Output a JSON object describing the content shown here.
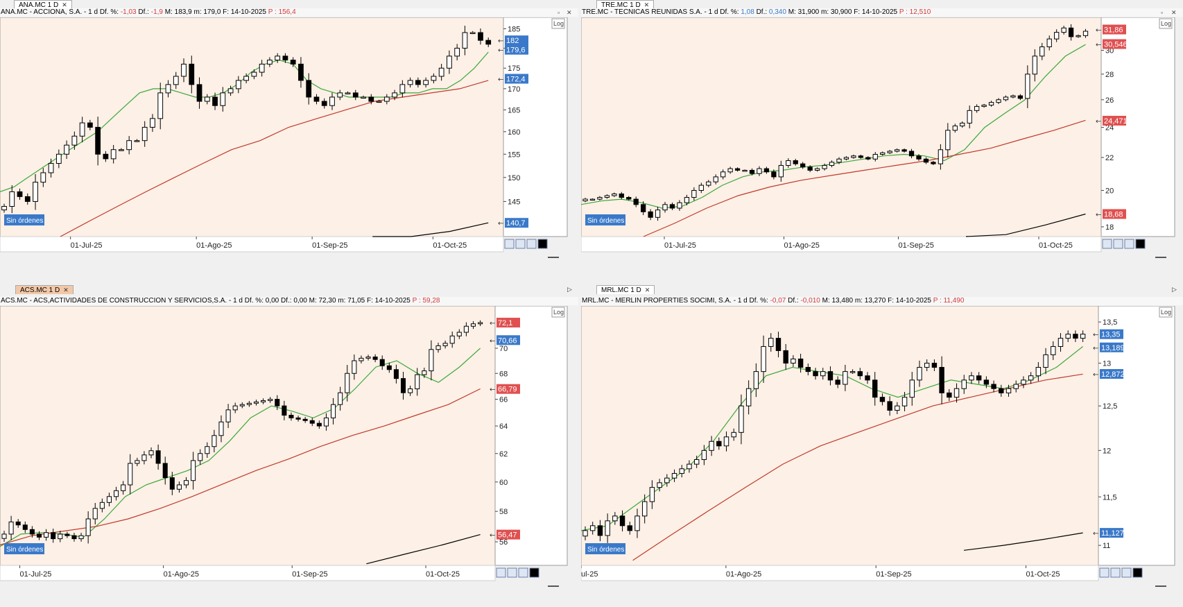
{
  "panels": [
    {
      "id": "ana",
      "tab": "ANA.MC 1 D",
      "header": {
        "name": "ANA.MC - ACCIONA, S.A. - 1 d",
        "dfp_label": "Df. %:",
        "dfp": "-1,03",
        "df_label": "Df.:",
        "df": "-1,9",
        "max": "M: 183,9",
        "min": "m: 179,0",
        "fecha": "F: 14-10-2025",
        "p": "P : 156,4"
      },
      "log_label": "Log",
      "orders_label": "Sin órdenes",
      "price_labels": [
        "182",
        "179,6",
        "172,4",
        "140,7"
      ],
      "chart_data": {
        "type": "candlestick",
        "x_labels": [
          "01-Jul-25",
          "01-Ago-25",
          "01-Sep-25",
          "01-Oct-25"
        ],
        "y_ticks": [
          "185",
          "180",
          "175",
          "170",
          "165",
          "160",
          "155",
          "150",
          "145"
        ],
        "ylim": [
          138,
          188
        ],
        "scale": "Log",
        "series": [
          {
            "name": "",
            "kind": "candles",
            "values": [
              144,
              147,
              146,
              145,
              149,
              151,
              153,
              155,
              157,
              159,
              162,
              161,
              155,
              154,
              156,
              156,
              158,
              158,
              161,
              163,
              169,
              171,
              173,
              176,
              171,
              167,
              168,
              166,
              169,
              170,
              172,
              173,
              174,
              176,
              177,
              178,
              177,
              176,
              172,
              168,
              167,
              166,
              168,
              169,
              169,
              168,
              168,
              167,
              167,
              168,
              169,
              171,
              172,
              171,
              172,
              173,
              175,
              178,
              180,
              184,
              184,
              182,
              181
            ]
          },
          {
            "name": "",
            "kind": "line",
            "color": "#3aa83a",
            "values": [
              147,
              148,
              150,
              152,
              154,
              156,
              158,
              160,
              163,
              166,
              169,
              170,
              170,
              169,
              168,
              168,
              169,
              171,
              174,
              176,
              177,
              176,
              172,
              170,
              169,
              168,
              168,
              168,
              168,
              169,
              169,
              170,
              170,
              172,
              175,
              179
            ]
          },
          {
            "name": "",
            "kind": "line",
            "color": "#c0392b",
            "values": [
              138,
              141,
              144,
              147,
              150,
              153,
              156,
              158,
              161,
              163,
              165,
              167,
              168,
              169,
              170,
              172
            ]
          },
          {
            "name": "",
            "kind": "line",
            "color": "#000000",
            "values": [
              137,
              138,
              139,
              140.7
            ]
          }
        ]
      }
    },
    {
      "id": "tre",
      "tab": "TRE.MC 1 D",
      "header": {
        "name": "TRE.MC - TECNICAS REUNIDAS S.A. - 1 d",
        "dfp_label": "Df. %:",
        "dfp": "1,08",
        "df_label": "Df.:",
        "df": "0,340",
        "max": "M: 31,900",
        "min": "m: 30,900",
        "fecha": "F: 14-10-2025",
        "p": "P : 12,510"
      },
      "log_label": "Log",
      "orders_label": "Sin órdenes",
      "price_labels": [
        "31,86",
        "30,546",
        "24,471",
        "18,68"
      ],
      "chart_data": {
        "type": "candlestick",
        "x_labels": [
          "01-Jul-25",
          "01-Ago-25",
          "01-Sep-25",
          "01-Oct-25"
        ],
        "y_ticks": [
          "30",
          "28",
          "26",
          "24",
          "22",
          "20",
          "18"
        ],
        "ylim": [
          17.5,
          33
        ],
        "scale": "Log",
        "series": [
          {
            "name": "",
            "kind": "candles",
            "values": [
              19.5,
              19.5,
              19.6,
              19.7,
              19.8,
              19.6,
              19.5,
              19.2,
              18.8,
              18.5,
              18.9,
              19.2,
              19.0,
              19.3,
              19.6,
              20.0,
              20.3,
              20.5,
              20.8,
              21.1,
              21.3,
              21.2,
              21.2,
              21.0,
              21.3,
              21.1,
              20.8,
              21.5,
              21.8,
              21.6,
              21.4,
              21.2,
              21.3,
              21.5,
              21.7,
              21.9,
              22.0,
              22.1,
              22.0,
              21.9,
              22.2,
              22.3,
              22.4,
              22.5,
              22.4,
              22.1,
              21.9,
              21.7,
              21.6,
              22.5,
              23.8,
              24.1,
              24.3,
              25.2,
              25.5,
              25.6,
              25.8,
              26.0,
              26.2,
              26.3,
              26.1,
              28.0,
              29.5,
              30.3,
              31.0,
              31.6,
              32.0,
              31.2,
              31.3,
              31.7
            ]
          },
          {
            "name": "",
            "kind": "line",
            "color": "#3aa83a",
            "values": [
              19.2,
              19.4,
              19.5,
              19.3,
              19.0,
              19.1,
              19.6,
              20.3,
              20.8,
              21.1,
              21.2,
              21.4,
              21.5,
              21.7,
              21.9,
              22.1,
              22.2,
              22.1,
              21.8,
              22.5,
              24.0,
              25.0,
              26.0,
              27.8,
              29.5,
              30.5
            ]
          },
          {
            "name": "",
            "kind": "line",
            "color": "#c0392b",
            "values": [
              17.5,
              18.2,
              19.0,
              19.7,
              20.2,
              20.6,
              20.9,
              21.2,
              21.5,
              21.8,
              22.2,
              22.6,
              23.2,
              23.8,
              24.5
            ]
          },
          {
            "name": "",
            "kind": "line",
            "color": "#000000",
            "values": [
              17.3,
              17.6,
              18.1,
              18.68
            ]
          }
        ]
      }
    },
    {
      "id": "acs",
      "tab": "ACS.MC 1 D",
      "header": {
        "name": "ACS.MC - ACS,ACTIVIDADES DE CONSTRUCCION Y SERVICIOS,S.A. - 1 d",
        "dfp_label": "Df. %:",
        "dfp": "0,00",
        "df_label": "Df.:",
        "df": "0,00",
        "max": "M: 72,30",
        "min": "m: 71,05",
        "fecha": "F: 14-10-2025",
        "p": "P : 59,28"
      },
      "log_label": "Log",
      "orders_label": "Sin órdenes",
      "price_labels": [
        "72,1",
        "70,66",
        "66,79",
        "56,47"
      ],
      "chart_data": {
        "type": "candlestick",
        "x_labels": [
          "01-Jul-25",
          "01-Ago-25",
          "01-Sep-25",
          "01-Oct-25"
        ],
        "y_ticks": [
          "70",
          "68",
          "66",
          "64",
          "62",
          "60",
          "58",
          "56"
        ],
        "ylim": [
          54.5,
          73.5
        ],
        "scale": "Log",
        "series": [
          {
            "name": "",
            "kind": "candles",
            "values": [
              56.5,
              57.3,
              57.1,
              56.8,
              56.5,
              56.3,
              56.6,
              56.2,
              56.5,
              56.4,
              56.2,
              56.4,
              57.5,
              58.2,
              58.6,
              59.0,
              59.4,
              59.8,
              61.3,
              61.5,
              61.9,
              62.2,
              61.3,
              60.3,
              59.5,
              59.8,
              60.1,
              61.5,
              62.0,
              62.5,
              63.3,
              64.3,
              65.2,
              65.5,
              65.6,
              65.7,
              65.8,
              65.9,
              66.0,
              65.5,
              64.8,
              64.6,
              64.5,
              64.4,
              64.2,
              64.0,
              64.6,
              65.6,
              66.5,
              68.0,
              69.0,
              69.2,
              69.3,
              69.1,
              68.6,
              68.3,
              67.6,
              66.5,
              66.8,
              67.9,
              68.2,
              69.9,
              70.2,
              70.4,
              71.0,
              71.3,
              71.8,
              72.0,
              72.1
            ]
          },
          {
            "name": "",
            "kind": "line",
            "color": "#3aa83a",
            "values": [
              55.7,
              56.5,
              56.6,
              56.5,
              56.3,
              57.5,
              59.0,
              59.8,
              60.3,
              60.8,
              61.5,
              62.9,
              64.6,
              65.5,
              65.1,
              64.6,
              65.3,
              66.8,
              68.5,
              69.0,
              68.0,
              67.3,
              68.5,
              70.0
            ]
          },
          {
            "name": "",
            "kind": "line",
            "color": "#c0392b",
            "values": [
              55.8,
              56.4,
              56.7,
              57.0,
              57.5,
              58.2,
              59.0,
              59.9,
              60.8,
              61.6,
              62.5,
              63.3,
              64.0,
              64.8,
              65.6,
              66.8
            ]
          },
          {
            "name": "",
            "kind": "line",
            "color": "#000000",
            "values": [
              54.6,
              55.2,
              55.8,
              56.47
            ]
          }
        ]
      }
    },
    {
      "id": "mrl",
      "tab": "MRL.MC 1 D",
      "header": {
        "name": "MRL.MC - MERLIN PROPERTIES SOCIMI, S.A. - 1 d",
        "dfp_label": "Df. %:",
        "dfp": "-0,07",
        "df_label": "Df.:",
        "df": "-0,010",
        "max": "M: 13,480",
        "min": "m: 13,270",
        "fecha": "F: 14-10-2025",
        "p": "P : 11,490"
      },
      "log_label": "Log",
      "orders_label": "Sin órdenes",
      "price_labels": [
        "13,35",
        "13,189",
        "12,872",
        "11,127"
      ],
      "chart_data": {
        "type": "candlestick",
        "x_labels": [
          "ul-25",
          "01-Ago-25",
          "01-Sep-25",
          "01-Oct-25"
        ],
        "y_ticks": [
          "13,5",
          "13",
          "12,5",
          "12",
          "11,5",
          "11"
        ],
        "ylim": [
          10.8,
          13.7
        ],
        "scale": "Log",
        "series": [
          {
            "name": "",
            "kind": "candles",
            "values": [
              11.15,
              11.2,
              11.1,
              11.25,
              11.3,
              11.2,
              11.15,
              11.3,
              11.45,
              11.6,
              11.65,
              11.7,
              11.75,
              11.8,
              11.85,
              11.9,
              12.0,
              12.1,
              12.05,
              12.15,
              12.2,
              12.5,
              12.7,
              12.9,
              13.2,
              13.3,
              13.15,
              13.0,
              13.05,
              12.95,
              12.9,
              12.85,
              12.9,
              12.8,
              12.75,
              12.9,
              12.9,
              12.85,
              12.8,
              12.6,
              12.55,
              12.45,
              12.5,
              12.6,
              12.8,
              12.95,
              13.0,
              12.95,
              12.65,
              12.6,
              12.7,
              12.8,
              12.85,
              12.8,
              12.75,
              12.7,
              12.65,
              12.7,
              12.75,
              12.8,
              12.85,
              12.95,
              13.1,
              13.2,
              13.3,
              13.35,
              13.3,
              13.35
            ]
          },
          {
            "name": "",
            "kind": "line",
            "color": "#3aa83a",
            "values": [
              11.15,
              11.2,
              11.4,
              11.6,
              11.8,
              12.1,
              12.5,
              12.85,
              12.95,
              12.9,
              12.85,
              12.7,
              12.6,
              12.7,
              12.8,
              12.75,
              12.7,
              12.8,
              12.95,
              13.2
            ]
          },
          {
            "name": "",
            "kind": "line",
            "color": "#c0392b",
            "values": [
              10.85,
              11.1,
              11.35,
              11.6,
              11.85,
              12.05,
              12.2,
              12.35,
              12.5,
              12.6,
              12.7,
              12.8,
              12.87
            ]
          },
          {
            "name": "",
            "kind": "line",
            "color": "#000000",
            "values": [
              10.95,
              11.0,
              11.06,
              11.127
            ]
          }
        ]
      }
    }
  ]
}
